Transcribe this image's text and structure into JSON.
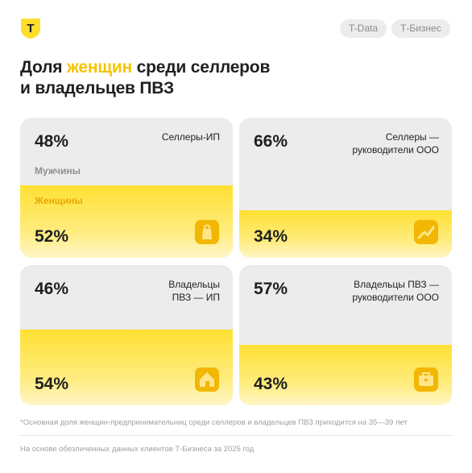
{
  "header": {
    "logo_letter": "Т",
    "tags": [
      "T-Data",
      "Т-Бизнес"
    ]
  },
  "title": {
    "part1": "Доля ",
    "highlight": "женщин",
    "part2": " среди селлеров",
    "line2": "и владельцев ПВЗ"
  },
  "legend": {
    "men": "Мужчины",
    "women": "Женщины"
  },
  "colors": {
    "accent": "#ffdd2d",
    "card_bg": "#ececec",
    "women_label": "#e9a800"
  },
  "chart_data": {
    "type": "bar",
    "title": "Доля женщин среди селлеров и владельцев ПВЗ",
    "categories": [
      "Селлеры-ИП",
      "Селлеры — руководители ООО",
      "Владельцы ПВЗ — ИП",
      "Владельцы ПВЗ — руководители ООО"
    ],
    "series": [
      {
        "name": "Мужчины",
        "values": [
          48,
          66,
          46,
          57
        ]
      },
      {
        "name": "Женщины",
        "values": [
          52,
          34,
          54,
          43
        ]
      }
    ],
    "unit": "%"
  },
  "cards": [
    {
      "label": "Селлеры-ИП",
      "men_pct": "48%",
      "women_pct": "52%",
      "women": 52,
      "icon": "bag-icon"
    },
    {
      "label": "Селлеры —\nруководители ООО",
      "men_pct": "66%",
      "women_pct": "34%",
      "women": 34,
      "icon": "chart-growth-icon"
    },
    {
      "label": "Владельцы\nПВЗ — ИП",
      "men_pct": "46%",
      "women_pct": "54%",
      "women": 54,
      "icon": "house-icon"
    },
    {
      "label": "Владельцы ПВЗ —\nруководители ООО",
      "men_pct": "57%",
      "women_pct": "43%",
      "women": 43,
      "icon": "briefcase-icon"
    }
  ],
  "footnote": "*Основная доля женщин-предпринимательниц среди селлеров и владельцев ПВЗ приходится на 35—39 лет",
  "source": "На основе обезличенных данных клиентов Т-Бизнеса за 2025 год"
}
